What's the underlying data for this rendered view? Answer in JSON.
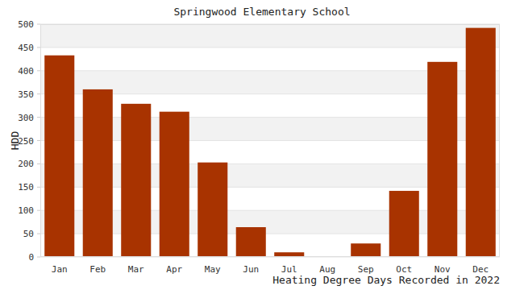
{
  "chart_data": {
    "type": "bar",
    "title": "Springwood Elementary School",
    "x_label": "Heating Degree Days Recorded in 2022",
    "y_label": "HDD",
    "categories": [
      "Jan",
      "Feb",
      "Mar",
      "Apr",
      "May",
      "Jun",
      "Jul",
      "Aug",
      "Sep",
      "Oct",
      "Nov",
      "Dec"
    ],
    "values": [
      433,
      360,
      329,
      312,
      203,
      64,
      10,
      0,
      29,
      142,
      419,
      492
    ],
    "color": "#a83300",
    "ylim": [
      0,
      500
    ],
    "yticks": [
      0,
      50,
      100,
      150,
      200,
      250,
      300,
      350,
      400,
      450,
      500
    ],
    "grid": true
  }
}
